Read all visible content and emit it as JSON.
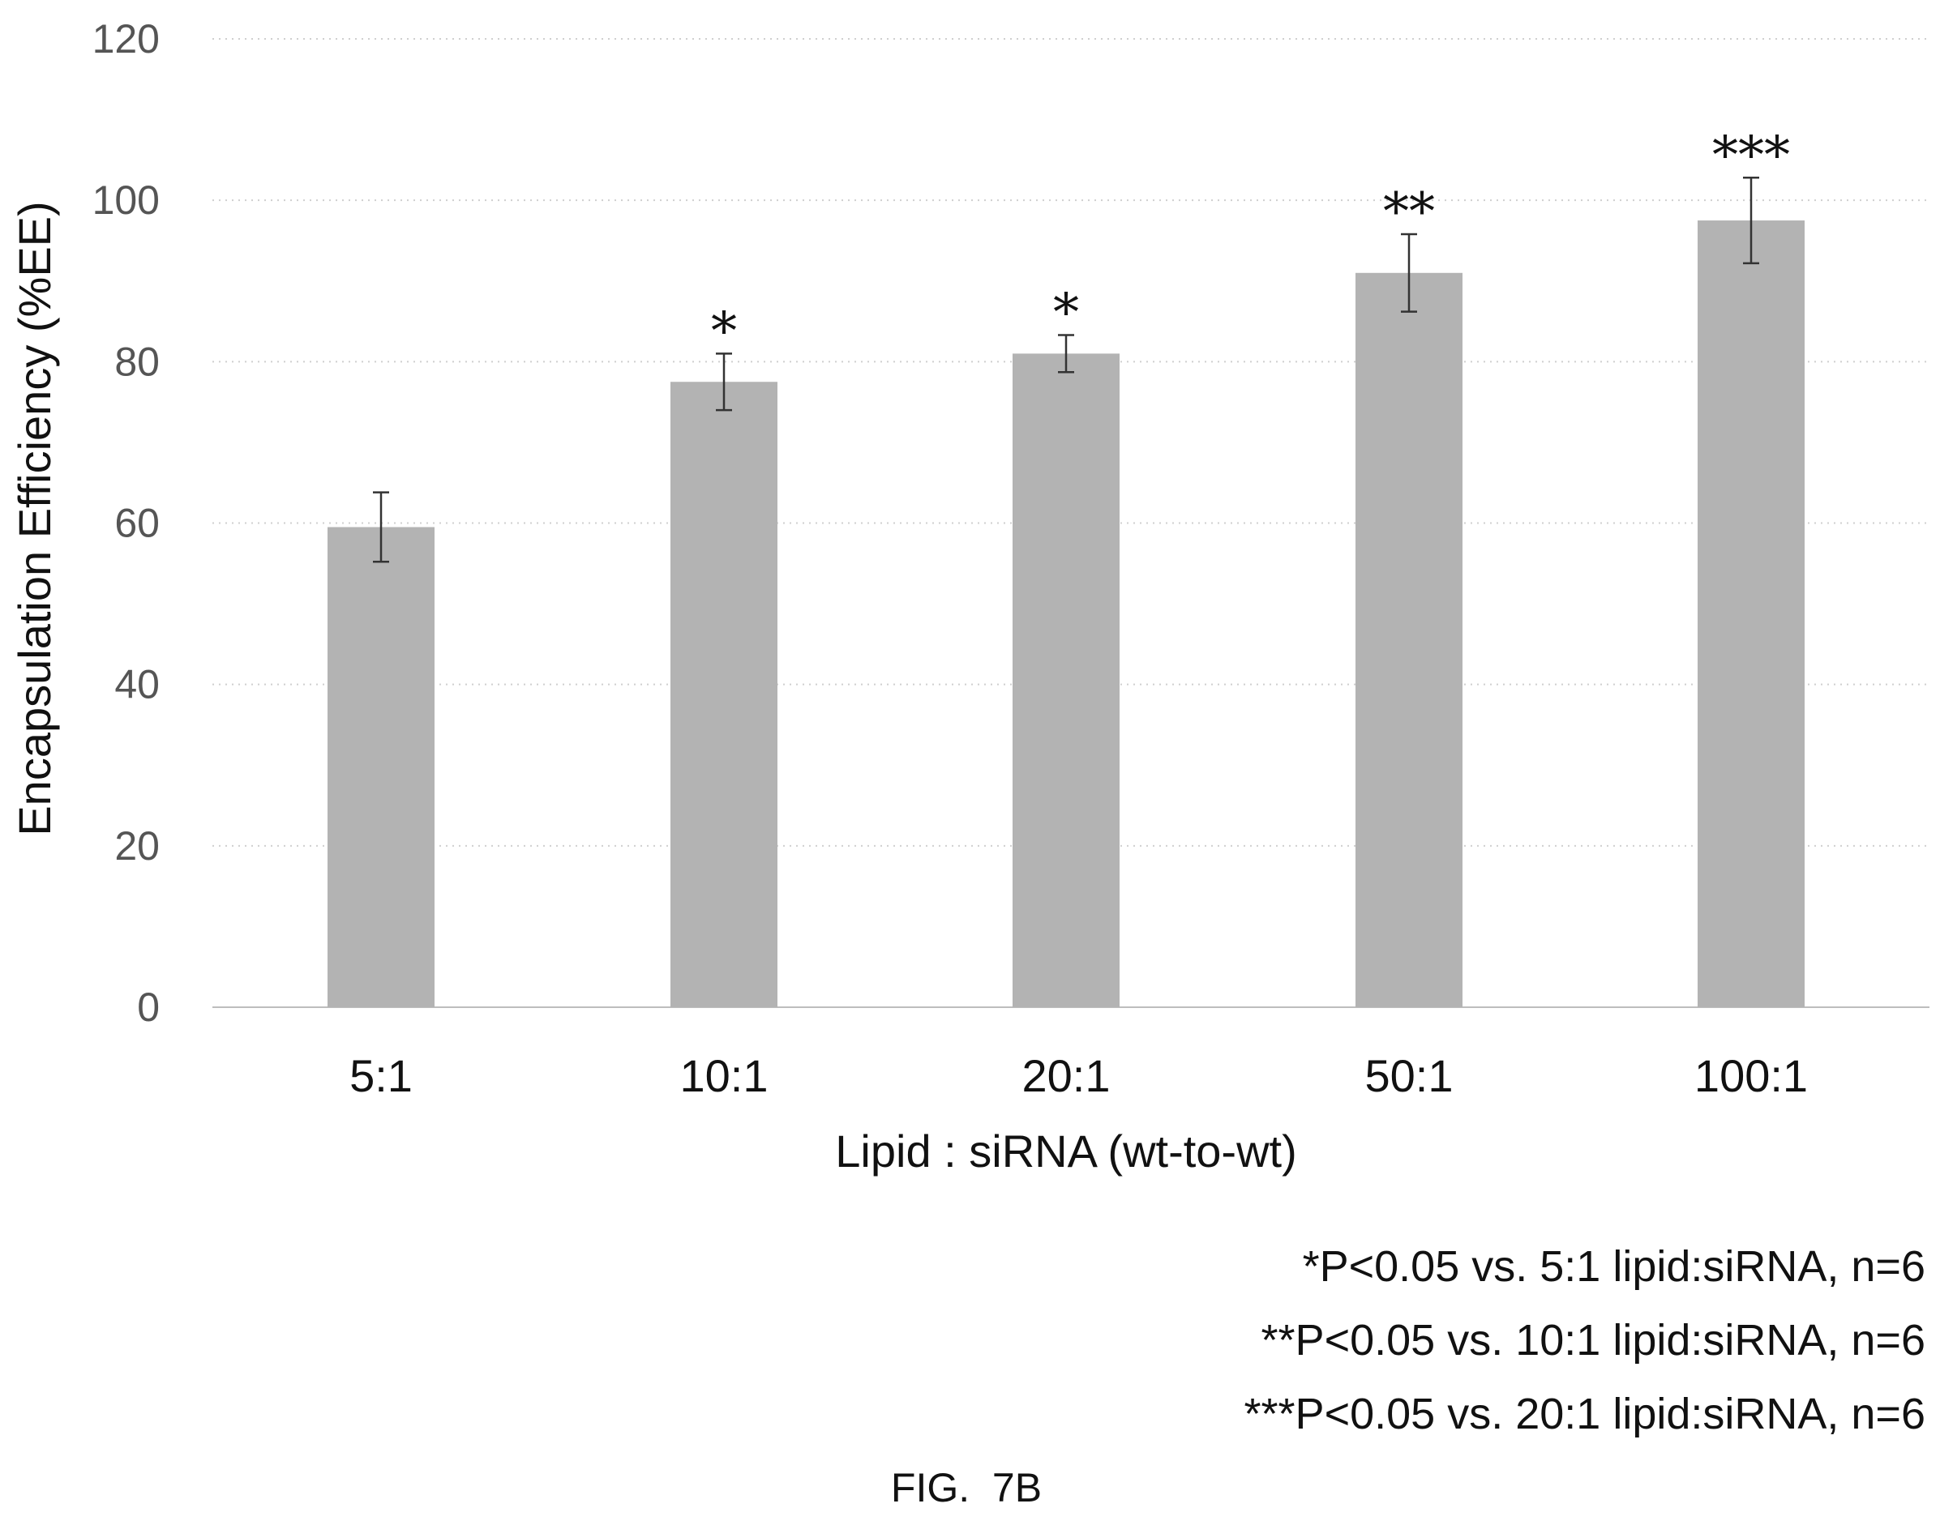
{
  "chart_data": {
    "type": "bar",
    "categories": [
      "5:1",
      "10:1",
      "20:1",
      "50:1",
      "100:1"
    ],
    "values": [
      59.5,
      77.5,
      81,
      91,
      97.5
    ],
    "errors": [
      4.3,
      3.5,
      2.3,
      4.8,
      5.3
    ],
    "significance": [
      "",
      "*",
      "*",
      "**",
      "***"
    ],
    "xlabel": "Lipid : siRNA (wt-to-wt)",
    "ylabel": "Encapsulation Efficiency (%EE)",
    "ylim": [
      0,
      120
    ],
    "yticks": [
      "0",
      "20",
      "40",
      "60",
      "80",
      "100",
      "120"
    ],
    "grid": true,
    "bar_color": "#b3b3b3",
    "legend": "none"
  },
  "footnotes": [
    "*P<0.05 vs. 5:1 lipid:siRNA, n=6",
    "**P<0.05 vs. 10:1 lipid:siRNA, n=6",
    "***P<0.05 vs. 20:1 lipid:siRNA, n=6"
  ],
  "figure_label": "FIG.  7B"
}
